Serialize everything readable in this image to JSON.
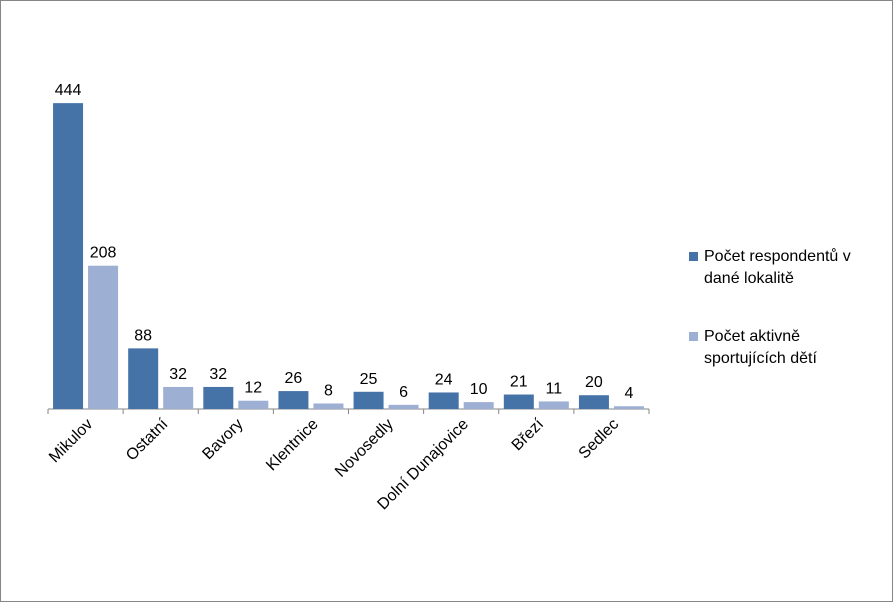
{
  "chart_data": {
    "type": "bar",
    "categories": [
      "Mikulov",
      "Ostatní",
      "Bavory",
      "Klentnice",
      "Novosedly",
      "Dolní Dunajovice",
      "Březí",
      "Sedlec"
    ],
    "series": [
      {
        "name": "Počet respondentů v dané lokalitě",
        "color": "#4572A7",
        "values": [
          444,
          88,
          32,
          26,
          25,
          24,
          21,
          20
        ]
      },
      {
        "name": "Počet aktivně sportujících dětí",
        "color": "#9DB0D4",
        "values": [
          208,
          32,
          12,
          8,
          6,
          10,
          11,
          4
        ]
      }
    ],
    "ylim": [
      0,
      450
    ],
    "grid": false,
    "legend": "right",
    "data_labels": true
  }
}
